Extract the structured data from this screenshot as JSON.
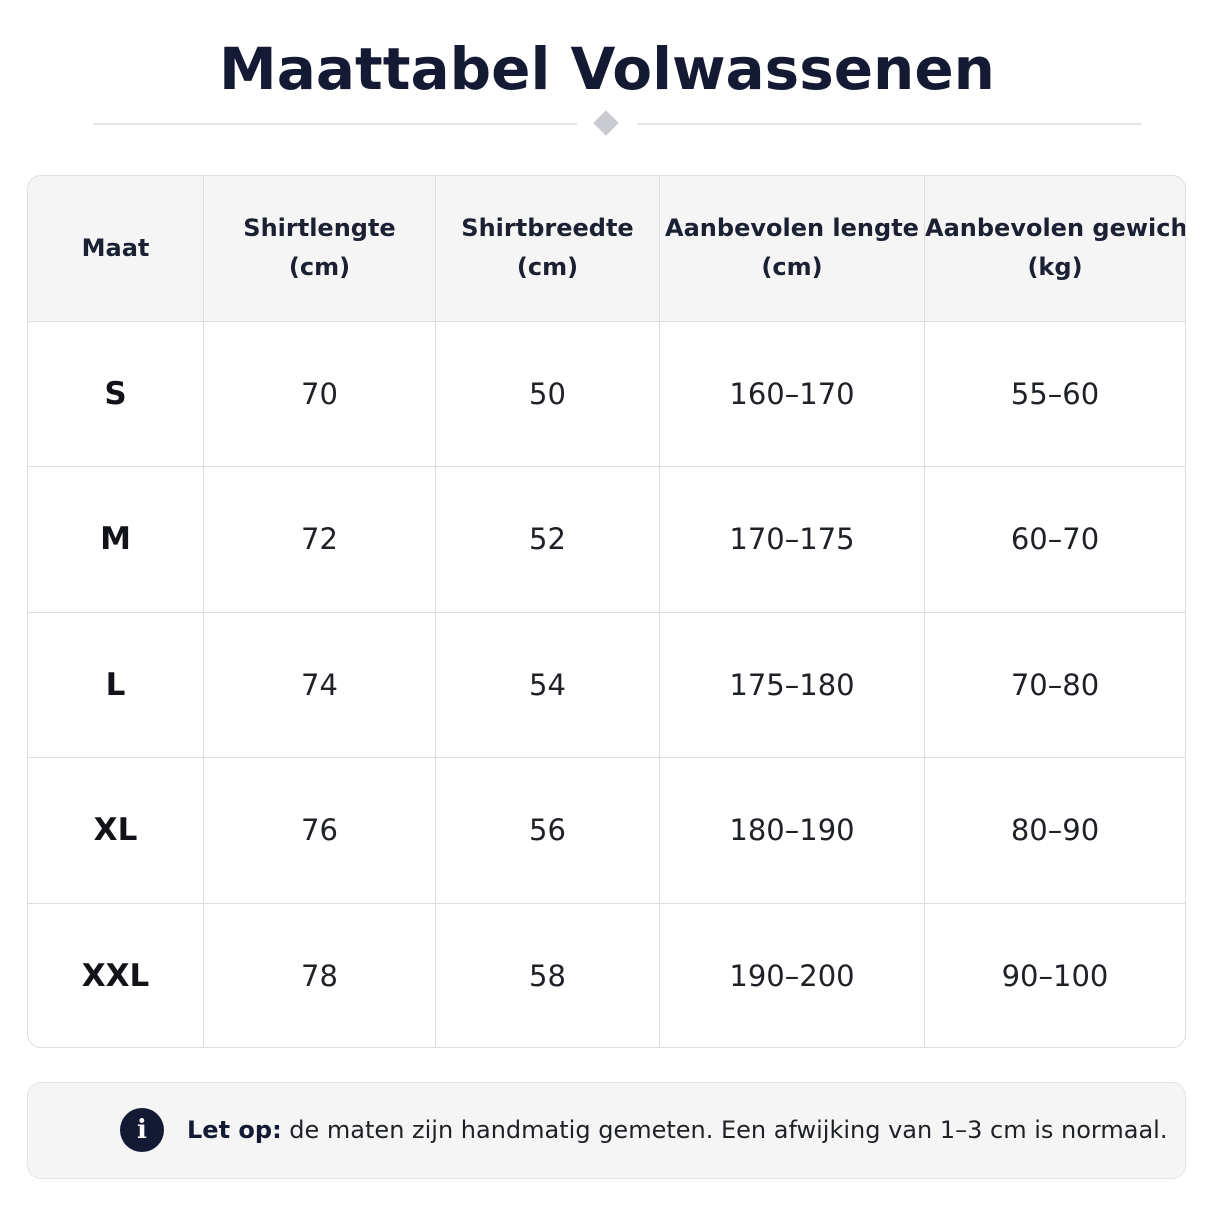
{
  "title": "Maattabel Volwassenen",
  "table": {
    "headers": [
      [
        "Maat"
      ],
      [
        "Shirtlengte",
        "(cm)"
      ],
      [
        "Shirtbreedte",
        "(cm)"
      ],
      [
        "Aanbevolen lengte",
        "(cm)"
      ],
      [
        "Aanbevolen gewicht",
        "(kg)"
      ]
    ],
    "rows": [
      [
        "S",
        "70",
        "50",
        "160–170",
        "55–60"
      ],
      [
        "M",
        "72",
        "52",
        "170–175",
        "60–70"
      ],
      [
        "L",
        "74",
        "54",
        "175–180",
        "70–80"
      ],
      [
        "XL",
        "76",
        "56",
        "180–190",
        "80–90"
      ],
      [
        "XXL",
        "78",
        "58",
        "190–200",
        "90–100"
      ]
    ]
  },
  "note": {
    "icon": "info-icon",
    "icon_glyph": "i",
    "label": "Let op:",
    "text": " de maten zijn handmatig gemeten. Een afwijking van 1–3 cm is normaal."
  },
  "colors": {
    "title": "#141a33",
    "header_bg": "#f5f5f6",
    "border": "#dcdde0",
    "icon_bg": "#141a33"
  }
}
